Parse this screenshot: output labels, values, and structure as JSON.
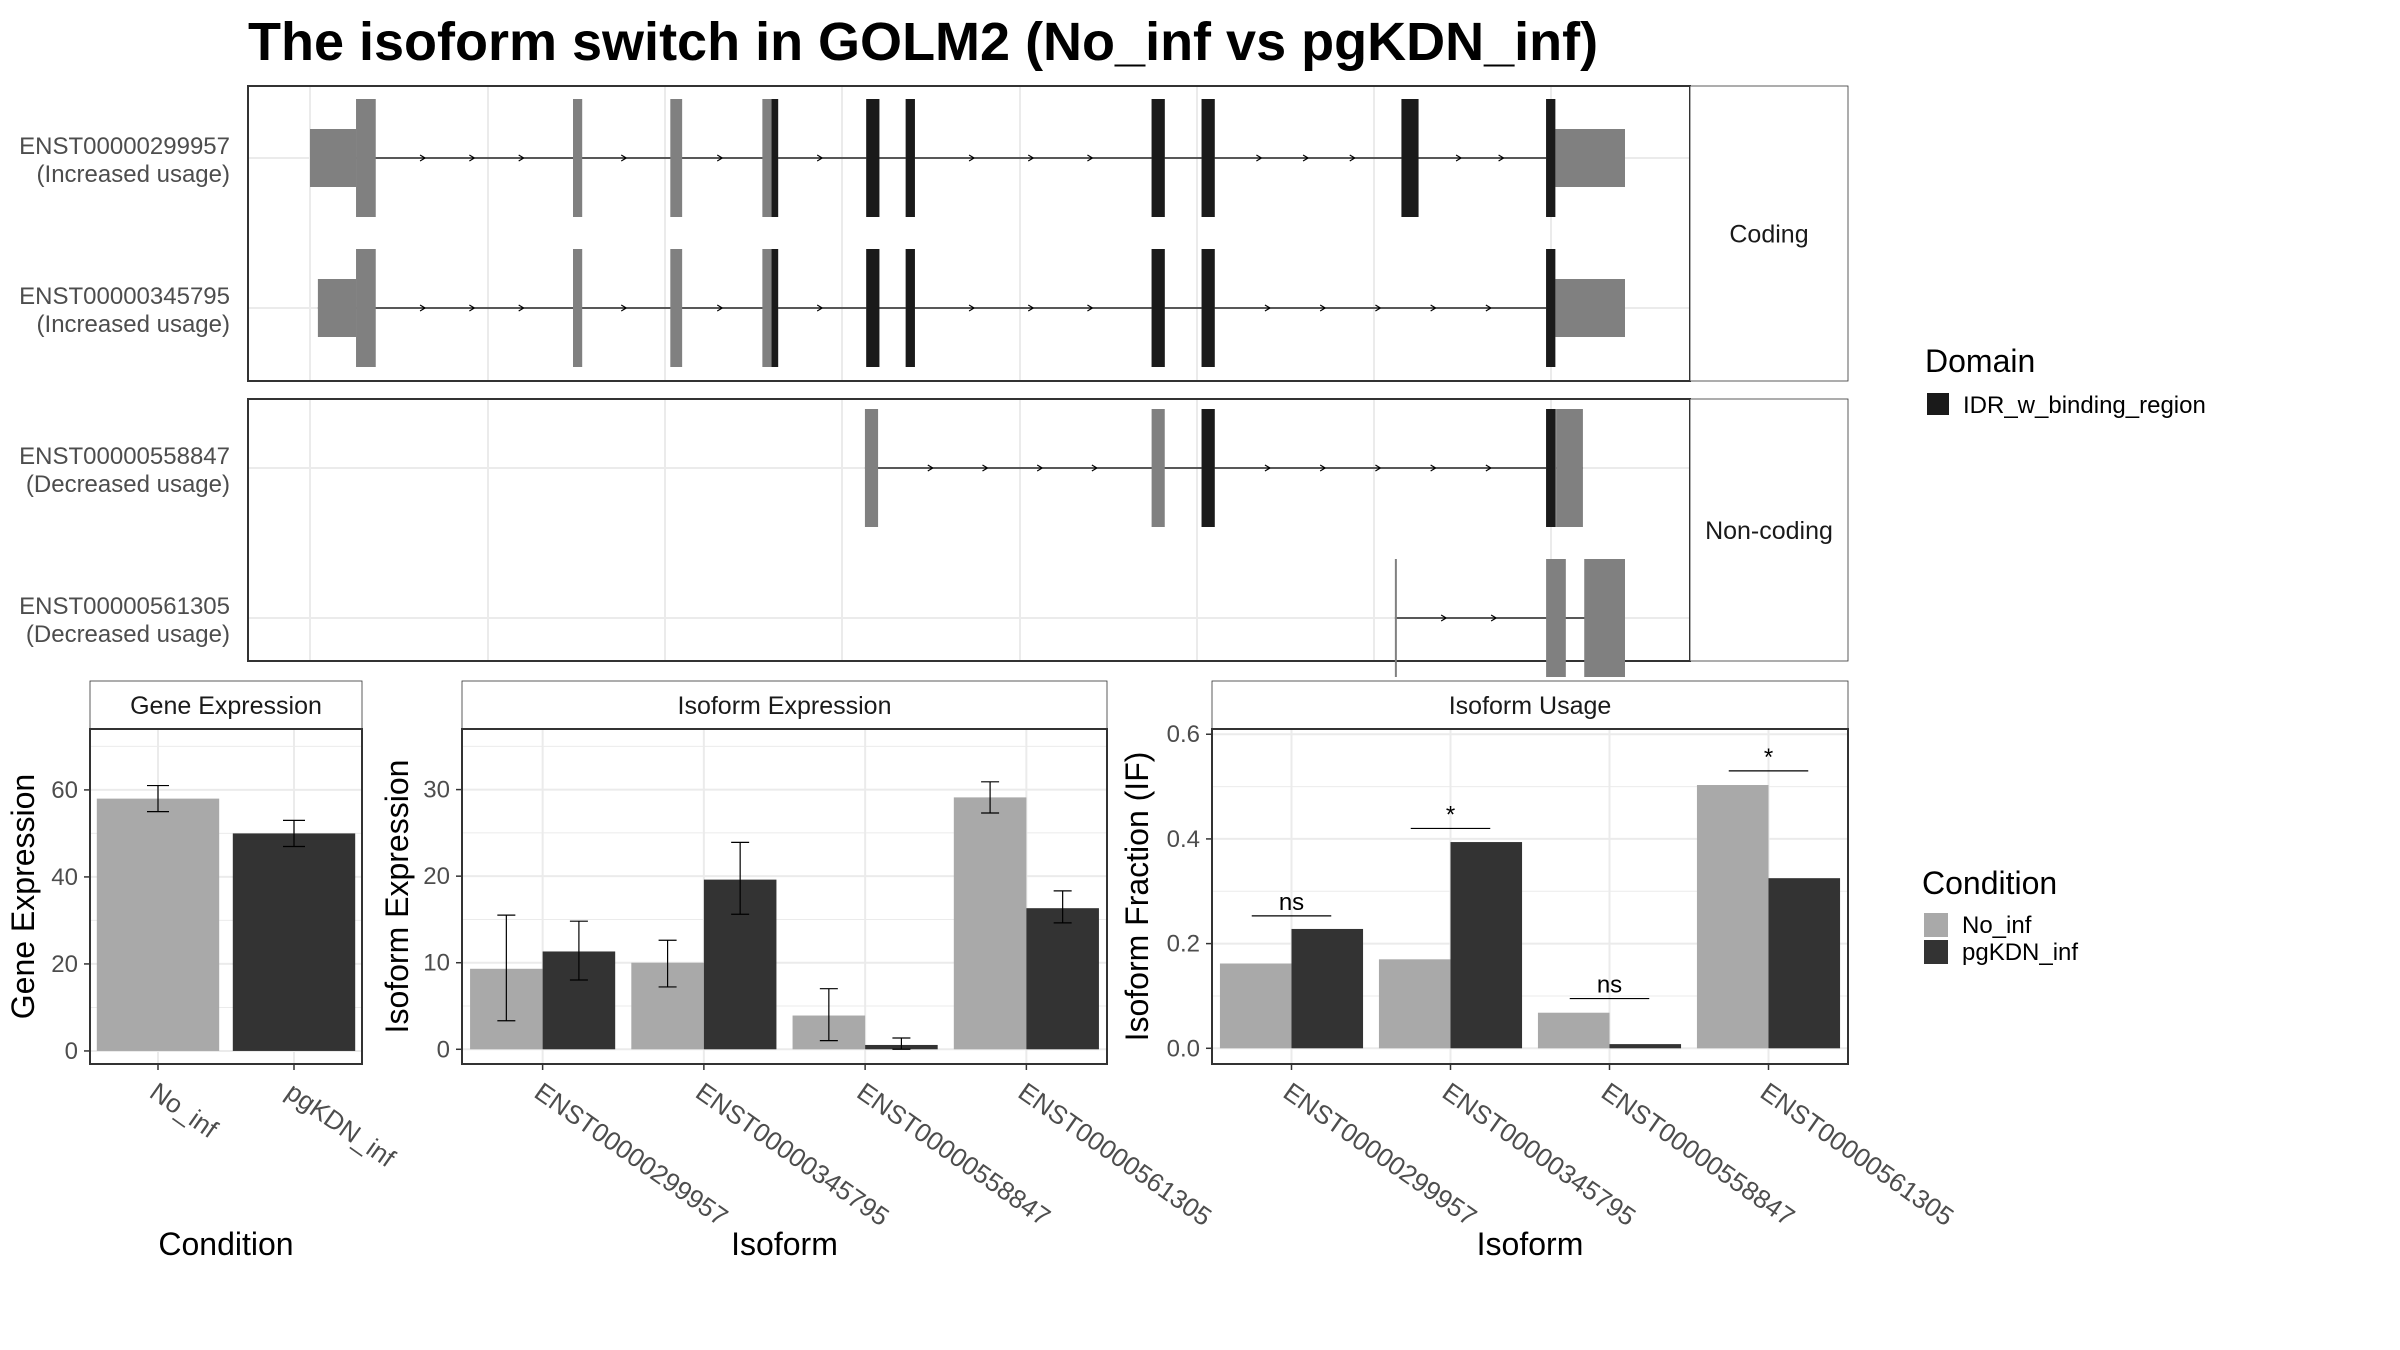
{
  "title": "The isoform switch in GOLM2 (No_inf vs pgKDN_inf)",
  "colors": {
    "no_inf": "#a9a9a9",
    "pgkdn_inf": "#333333",
    "exon_noncoding": "#808080",
    "domain": "#1a1a1a",
    "grid": "#ebebeb",
    "panel_border": "#333333",
    "strip_bg": "#ffffff"
  },
  "chart_data": [
    {
      "type": "gene_structure",
      "facets": [
        "Coding",
        "Non-coding"
      ],
      "transcripts": [
        {
          "id": "ENST00000299957",
          "label": "ENST00000299957",
          "usage": "(Increased usage)",
          "facet": "Coding",
          "utr": [
            [
              0.0,
              0.035
            ],
            [
              0.942,
              1.0
            ]
          ],
          "exons": [
            [
              0.035,
              0.05
            ],
            [
              0.2,
              0.207
            ],
            [
              0.274,
              0.283
            ],
            [
              0.344,
              0.351
            ],
            [
              0.351,
              0.356
            ],
            [
              0.423,
              0.433
            ],
            [
              0.453,
              0.46
            ],
            [
              0.64,
              0.65
            ],
            [
              0.678,
              0.688
            ],
            [
              0.83,
              0.843
            ],
            [
              0.94,
              0.947
            ]
          ],
          "domains": [
            [
              0.351,
              0.356
            ],
            [
              0.423,
              0.433
            ],
            [
              0.453,
              0.46
            ],
            [
              0.64,
              0.65
            ],
            [
              0.678,
              0.688
            ],
            [
              0.83,
              0.843
            ],
            [
              0.94,
              0.947
            ]
          ]
        },
        {
          "id": "ENST00000345795",
          "label": "ENST00000345795",
          "usage": "(Increased usage)",
          "facet": "Coding",
          "utr": [
            [
              0.006,
              0.035
            ],
            [
              0.942,
              1.0
            ]
          ],
          "exons": [
            [
              0.035,
              0.05
            ],
            [
              0.2,
              0.207
            ],
            [
              0.274,
              0.283
            ],
            [
              0.344,
              0.351
            ],
            [
              0.351,
              0.356
            ],
            [
              0.423,
              0.433
            ],
            [
              0.453,
              0.46
            ],
            [
              0.64,
              0.65
            ],
            [
              0.678,
              0.688
            ],
            [
              0.94,
              0.947
            ]
          ],
          "domains": [
            [
              0.351,
              0.356
            ],
            [
              0.423,
              0.433
            ],
            [
              0.453,
              0.46
            ],
            [
              0.64,
              0.65
            ],
            [
              0.678,
              0.688
            ],
            [
              0.94,
              0.947
            ]
          ]
        },
        {
          "id": "ENST00000558847",
          "label": "ENST00000558847",
          "usage": "(Decreased usage)",
          "facet": "Non-coding",
          "utr": [],
          "exons": [
            [
              0.422,
              0.432
            ],
            [
              0.64,
              0.65
            ],
            [
              0.678,
              0.688
            ],
            [
              0.94,
              0.948
            ],
            [
              0.948,
              0.968
            ]
          ],
          "domains": [
            [
              0.678,
              0.688
            ],
            [
              0.94,
              0.947
            ]
          ]
        },
        {
          "id": "ENST00000561305",
          "label": "ENST00000561305",
          "usage": "(Decreased usage)",
          "facet": "Non-coding",
          "utr": [],
          "exons": [
            [
              0.825,
              0.826
            ],
            [
              0.94,
              0.955
            ],
            [
              0.969,
              1.0
            ]
          ],
          "domains": []
        }
      ],
      "legend": {
        "title": "Domain",
        "entries": [
          "IDR_w_binding_region"
        ]
      }
    },
    {
      "type": "bar",
      "title": "Gene Expression",
      "xlabel": "Condition",
      "ylabel": "Gene Expression",
      "categories": [
        "No_inf",
        "pgKDN_inf"
      ],
      "values": [
        58,
        50
      ],
      "errors": [
        [
          55,
          61
        ],
        [
          47,
          53
        ]
      ],
      "ylim": [
        -3,
        74
      ],
      "yticks": [
        0,
        20,
        40,
        60
      ]
    },
    {
      "type": "bar",
      "title": "Isoform Expression",
      "xlabel": "Isoform",
      "ylabel": "Isoform Expression",
      "categories": [
        "ENST00000299957",
        "ENST00000345795",
        "ENST00000558847",
        "ENST00000561305"
      ],
      "series": [
        {
          "name": "No_inf",
          "values": [
            9.3,
            10.0,
            3.9,
            29.1
          ],
          "errors": [
            [
              3.3,
              15.5
            ],
            [
              7.2,
              12.6
            ],
            [
              1.0,
              7.0
            ],
            [
              27.3,
              30.9
            ]
          ]
        },
        {
          "name": "pgKDN_inf",
          "values": [
            11.3,
            19.6,
            0.5,
            16.3
          ],
          "errors": [
            [
              8.0,
              14.8
            ],
            [
              15.6,
              23.9
            ],
            [
              0.0,
              1.3
            ],
            [
              14.6,
              18.3
            ]
          ]
        }
      ],
      "ylim": [
        -1.7,
        37
      ],
      "yticks": [
        0,
        10,
        20,
        30
      ]
    },
    {
      "type": "bar",
      "title": "Isoform Usage",
      "xlabel": "Isoform",
      "ylabel": "Isoform Fraction (IF)",
      "categories": [
        "ENST00000299957",
        "ENST00000345795",
        "ENST00000558847",
        "ENST00000561305"
      ],
      "series": [
        {
          "name": "No_inf",
          "values": [
            0.162,
            0.17,
            0.068,
            0.503
          ]
        },
        {
          "name": "pgKDN_inf",
          "values": [
            0.228,
            0.394,
            0.008,
            0.325
          ]
        }
      ],
      "significance": [
        "ns",
        "*",
        "ns",
        "*"
      ],
      "significance_y": [
        0.253,
        0.42,
        0.095,
        0.53
      ],
      "ylim": [
        -0.03,
        0.61
      ],
      "yticks": [
        0.0,
        0.2,
        0.4,
        0.6
      ],
      "ytick_labels": [
        "0.0",
        "0.2",
        "0.4",
        "0.6"
      ]
    }
  ],
  "legend_condition": {
    "title": "Condition",
    "entries": [
      "No_inf",
      "pgKDN_inf"
    ]
  }
}
